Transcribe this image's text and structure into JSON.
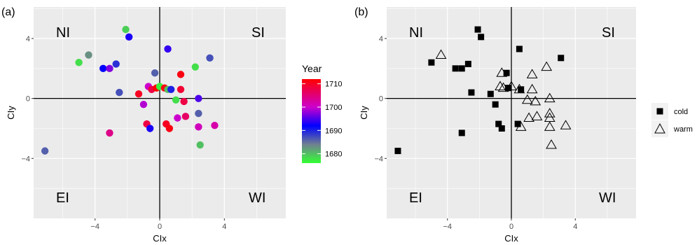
{
  "colors": {
    "panel_bg": "#ebebeb",
    "grid": "#ffffff",
    "axis_line": "#000000",
    "tick_text": "#4d4d4d",
    "year_low": "#33ff33",
    "year_mid_low": "#708090",
    "year_mid": "#0000ff",
    "year_mid_high": "#cc00cc",
    "year_high": "#ff0000"
  },
  "chart_data": [
    {
      "type": "scatter",
      "panel_label": "(a)",
      "xlabel": "CIx",
      "ylabel": "CIy",
      "xlim": [
        -7.8,
        7.8
      ],
      "ylim": [
        -8,
        6.1
      ],
      "xticks": [
        -4,
        0,
        4
      ],
      "xtick_labels": [
        "−4",
        "0",
        "4"
      ],
      "yticks": [
        -4,
        0,
        4
      ],
      "ytick_labels": [
        "−4",
        "0",
        "4"
      ],
      "grid": true,
      "quadrant_labels": {
        "top_left": "NI",
        "top_right": "SI",
        "bottom_left": "EI",
        "bottom_right": "WI"
      },
      "color_scale": {
        "title": "Year",
        "ticks": [
          1680,
          1690,
          1700,
          1710
        ],
        "range": [
          1676,
          1712
        ],
        "stops": [
          {
            "value": 1676,
            "color": "#33ff33"
          },
          {
            "value": 1684,
            "color": "#708090"
          },
          {
            "value": 1692,
            "color": "#0000ff"
          },
          {
            "value": 1700,
            "color": "#cc00cc"
          },
          {
            "value": 1712,
            "color": "#ff0000"
          }
        ]
      },
      "points": [
        {
          "x": -7.1,
          "y": -3.5,
          "year": 1686
        },
        {
          "x": -5.0,
          "y": 2.4,
          "year": 1678
        },
        {
          "x": -4.4,
          "y": 2.9,
          "year": 1683
        },
        {
          "x": -3.5,
          "y": 2.0,
          "year": 1692
        },
        {
          "x": -3.1,
          "y": 2.0,
          "year": 1697
        },
        {
          "x": -3.1,
          "y": -2.3,
          "year": 1704
        },
        {
          "x": -2.7,
          "y": 2.3,
          "year": 1689
        },
        {
          "x": -2.5,
          "y": 0.4,
          "year": 1687
        },
        {
          "x": -2.1,
          "y": 4.6,
          "year": 1679
        },
        {
          "x": -1.9,
          "y": 4.1,
          "year": 1693
        },
        {
          "x": -1.3,
          "y": 0.3,
          "year": 1710
        },
        {
          "x": -1.0,
          "y": -0.4,
          "year": 1699
        },
        {
          "x": -0.8,
          "y": -1.7,
          "year": 1708
        },
        {
          "x": -0.7,
          "y": 0.8,
          "year": 1700
        },
        {
          "x": -0.6,
          "y": -2.0,
          "year": 1693
        },
        {
          "x": -0.5,
          "y": 0.6,
          "year": 1708
        },
        {
          "x": -0.3,
          "y": 1.7,
          "year": 1686
        },
        {
          "x": -0.2,
          "y": 0.7,
          "year": 1712
        },
        {
          "x": 0.0,
          "y": 0.8,
          "year": 1677
        },
        {
          "x": 0.3,
          "y": 0.7,
          "year": 1711
        },
        {
          "x": 0.4,
          "y": -1.7,
          "year": 1710
        },
        {
          "x": 0.5,
          "y": 3.3,
          "year": 1694
        },
        {
          "x": 0.5,
          "y": 0.6,
          "year": 1680
        },
        {
          "x": 0.6,
          "y": -2.0,
          "year": 1711
        },
        {
          "x": 0.7,
          "y": 0.6,
          "year": 1690
        },
        {
          "x": 1.0,
          "y": -0.1,
          "year": 1678
        },
        {
          "x": 1.1,
          "y": -1.3,
          "year": 1700
        },
        {
          "x": 1.3,
          "y": 1.6,
          "year": 1711
        },
        {
          "x": 1.3,
          "y": 0.6,
          "year": 1709
        },
        {
          "x": 1.5,
          "y": -0.2,
          "year": 1708
        },
        {
          "x": 1.6,
          "y": -1.2,
          "year": 1706
        },
        {
          "x": 2.2,
          "y": 2.1,
          "year": 1678
        },
        {
          "x": 2.4,
          "y": 0.0,
          "year": 1695
        },
        {
          "x": 2.4,
          "y": -1.0,
          "year": 1686
        },
        {
          "x": 2.4,
          "y": -1.9,
          "year": 1701
        },
        {
          "x": 2.5,
          "y": -3.1,
          "year": 1680
        },
        {
          "x": 3.1,
          "y": 2.7,
          "year": 1687
        },
        {
          "x": 3.4,
          "y": -1.8,
          "year": 1702
        }
      ]
    },
    {
      "type": "scatter",
      "panel_label": "(b)",
      "xlabel": "CIx",
      "ylabel": "CIy",
      "xlim": [
        -7.8,
        7.8
      ],
      "ylim": [
        -8,
        6.1
      ],
      "xticks": [
        -4,
        0,
        4
      ],
      "xtick_labels": [
        "−4",
        "0",
        "4"
      ],
      "yticks": [
        -4,
        0,
        4
      ],
      "ytick_labels": [
        "−4",
        "0",
        "4"
      ],
      "grid": true,
      "quadrant_labels": {
        "top_left": "NI",
        "top_right": "SI",
        "bottom_left": "EI",
        "bottom_right": "WI"
      },
      "legend": {
        "position": "right",
        "entries": [
          {
            "label": "cold",
            "shape": "square"
          },
          {
            "label": "warm",
            "shape": "triangle"
          }
        ]
      },
      "series": [
        {
          "name": "cold",
          "shape": "square",
          "points": [
            {
              "x": -7.1,
              "y": -3.5
            },
            {
              "x": -5.0,
              "y": 2.4
            },
            {
              "x": -3.5,
              "y": 2.0
            },
            {
              "x": -3.1,
              "y": 2.0
            },
            {
              "x": -3.1,
              "y": -2.3
            },
            {
              "x": -2.7,
              "y": 2.3
            },
            {
              "x": -2.5,
              "y": 0.4
            },
            {
              "x": -2.1,
              "y": 4.6
            },
            {
              "x": -1.9,
              "y": 4.1
            },
            {
              "x": -1.3,
              "y": 0.3
            },
            {
              "x": -1.0,
              "y": -0.4
            },
            {
              "x": -0.8,
              "y": -1.7
            },
            {
              "x": -0.6,
              "y": -2.0
            },
            {
              "x": -0.3,
              "y": 1.7
            },
            {
              "x": -0.2,
              "y": 0.7
            },
            {
              "x": 0.4,
              "y": -1.7
            },
            {
              "x": 0.5,
              "y": 3.3
            },
            {
              "x": 0.6,
              "y": 0.6
            },
            {
              "x": 3.1,
              "y": 2.7
            }
          ]
        },
        {
          "name": "warm",
          "shape": "triangle",
          "points": [
            {
              "x": -4.4,
              "y": 2.9
            },
            {
              "x": -0.6,
              "y": 1.7
            },
            {
              "x": -0.7,
              "y": 0.8
            },
            {
              "x": -0.5,
              "y": 0.7
            },
            {
              "x": 0.0,
              "y": 0.8
            },
            {
              "x": 0.5,
              "y": 0.6
            },
            {
              "x": 0.6,
              "y": -1.9
            },
            {
              "x": 1.0,
              "y": -0.1
            },
            {
              "x": 1.1,
              "y": -1.3
            },
            {
              "x": 1.3,
              "y": 1.6
            },
            {
              "x": 1.3,
              "y": 0.6
            },
            {
              "x": 1.5,
              "y": -0.2
            },
            {
              "x": 1.6,
              "y": -1.2
            },
            {
              "x": 2.2,
              "y": 2.1
            },
            {
              "x": 2.4,
              "y": 0.0
            },
            {
              "x": 2.4,
              "y": -1.0
            },
            {
              "x": 2.4,
              "y": -1.3
            },
            {
              "x": 2.4,
              "y": -1.9
            },
            {
              "x": 2.5,
              "y": -3.1
            },
            {
              "x": 3.4,
              "y": -1.8
            }
          ]
        }
      ]
    }
  ]
}
